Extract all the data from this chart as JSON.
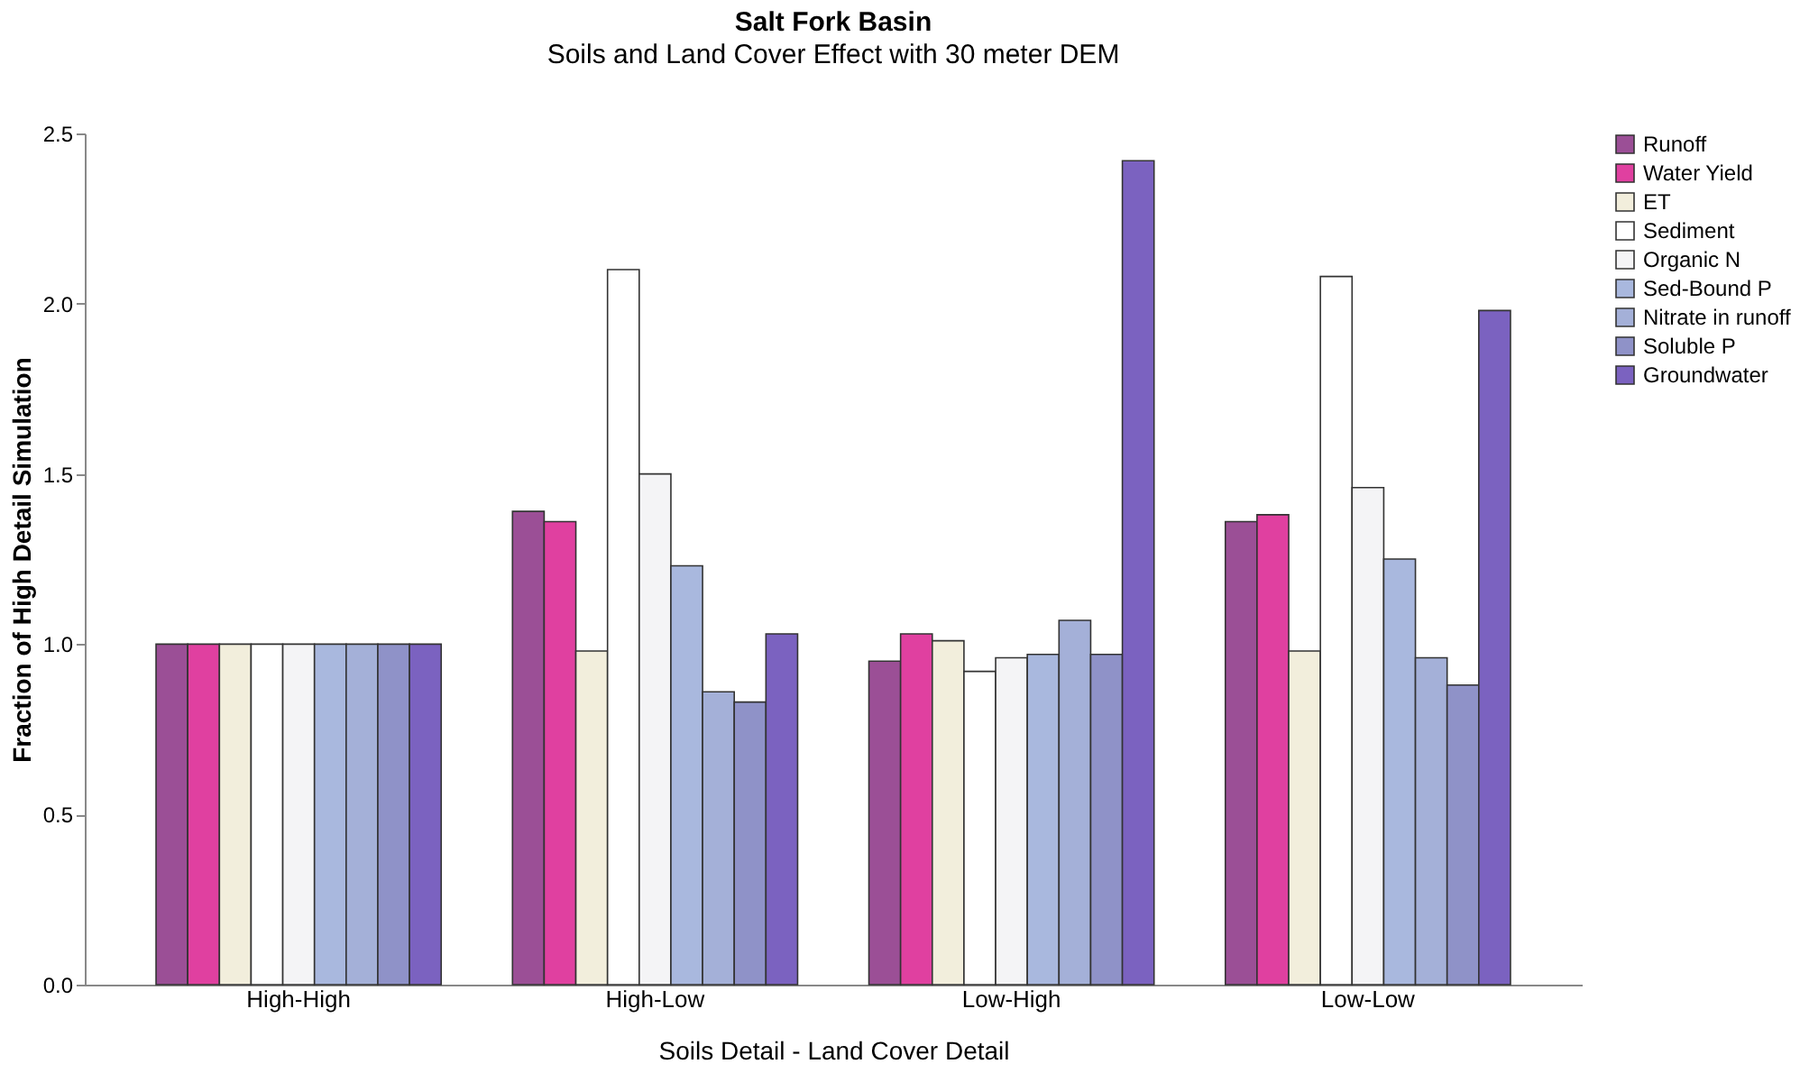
{
  "chart_data": {
    "type": "bar",
    "title": "Salt Fork Basin",
    "subtitle": "Soils and Land Cover Effect with 30 meter DEM",
    "xlabel": "Soils Detail - Land Cover Detail",
    "ylabel": "Fraction of High Detail Simulation",
    "categories": [
      "High-High",
      "High-Low",
      "Low-High",
      "Low-Low"
    ],
    "series": [
      {
        "name": "Runoff",
        "color": "#9b4f96",
        "values": [
          1.0,
          1.39,
          0.95,
          1.36
        ]
      },
      {
        "name": "Water Yield",
        "color": "#e040a0",
        "values": [
          1.0,
          1.36,
          1.03,
          1.38
        ]
      },
      {
        "name": "ET",
        "color": "#f2eedc",
        "values": [
          1.0,
          0.98,
          1.01,
          0.98
        ]
      },
      {
        "name": "Sediment",
        "color": "#ffffff",
        "values": [
          1.0,
          2.1,
          0.92,
          2.08
        ]
      },
      {
        "name": "Organic N",
        "color": "#f4f4f6",
        "values": [
          1.0,
          1.5,
          0.96,
          1.46
        ]
      },
      {
        "name": "Sed-Bound P",
        "color": "#a9b8de",
        "values": [
          1.0,
          1.23,
          0.97,
          1.25
        ]
      },
      {
        "name": "Nitrate in runoff",
        "color": "#a4b0d8",
        "values": [
          1.0,
          0.86,
          1.07,
          0.96
        ]
      },
      {
        "name": "Soluble P",
        "color": "#8f92c8",
        "values": [
          1.0,
          0.83,
          0.97,
          0.88
        ]
      },
      {
        "name": "Groundwater",
        "color": "#7b62c0",
        "values": [
          1.0,
          1.03,
          2.42,
          1.98
        ]
      }
    ],
    "ylim": [
      0,
      2.5
    ],
    "yticks": [
      {
        "value": 0,
        "label": "0.0"
      },
      {
        "value": 0.5,
        "label": "0.5"
      },
      {
        "value": 1,
        "label": "1.0"
      },
      {
        "value": 1.5,
        "label": "1.5"
      },
      {
        "value": 2,
        "label": "2.0"
      },
      {
        "value": 2.5,
        "label": "2.5"
      }
    ],
    "grid": false,
    "legend": "right"
  }
}
